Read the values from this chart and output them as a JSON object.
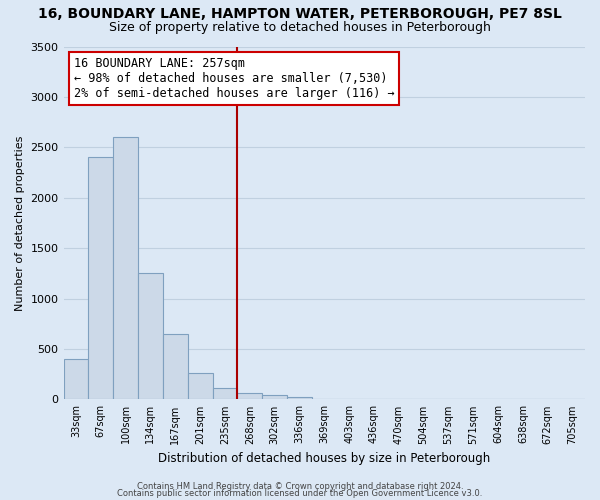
{
  "title": "16, BOUNDARY LANE, HAMPTON WATER, PETERBOROUGH, PE7 8SL",
  "subtitle": "Size of property relative to detached houses in Peterborough",
  "xlabel": "Distribution of detached houses by size in Peterborough",
  "ylabel": "Number of detached properties",
  "bar_color": "#ccd9e8",
  "bar_edge_color": "#7fa0bf",
  "categories": [
    "33sqm",
    "67sqm",
    "100sqm",
    "134sqm",
    "167sqm",
    "201sqm",
    "235sqm",
    "268sqm",
    "302sqm",
    "336sqm",
    "369sqm",
    "403sqm",
    "436sqm",
    "470sqm",
    "504sqm",
    "537sqm",
    "571sqm",
    "604sqm",
    "638sqm",
    "672sqm",
    "705sqm"
  ],
  "values": [
    400,
    2400,
    2600,
    1250,
    650,
    260,
    110,
    60,
    40,
    20,
    0,
    0,
    0,
    0,
    0,
    0,
    0,
    0,
    0,
    0,
    0
  ],
  "ylim": [
    0,
    3500
  ],
  "yticks": [
    0,
    500,
    1000,
    1500,
    2000,
    2500,
    3000,
    3500
  ],
  "vline_index": 7,
  "vline_color": "#aa0000",
  "annotation_title": "16 BOUNDARY LANE: 257sqm",
  "annotation_line1": "← 98% of detached houses are smaller (7,530)",
  "annotation_line2": "2% of semi-detached houses are larger (116) →",
  "annotation_box_facecolor": "#ffffff",
  "annotation_box_edgecolor": "#cc0000",
  "footer1": "Contains HM Land Registry data © Crown copyright and database right 2024.",
  "footer2": "Contains public sector information licensed under the Open Government Licence v3.0.",
  "background_color": "#dce8f5",
  "plot_background": "#dce8f5",
  "grid_color": "#c0d0e0",
  "title_fontsize": 10,
  "subtitle_fontsize": 9
}
